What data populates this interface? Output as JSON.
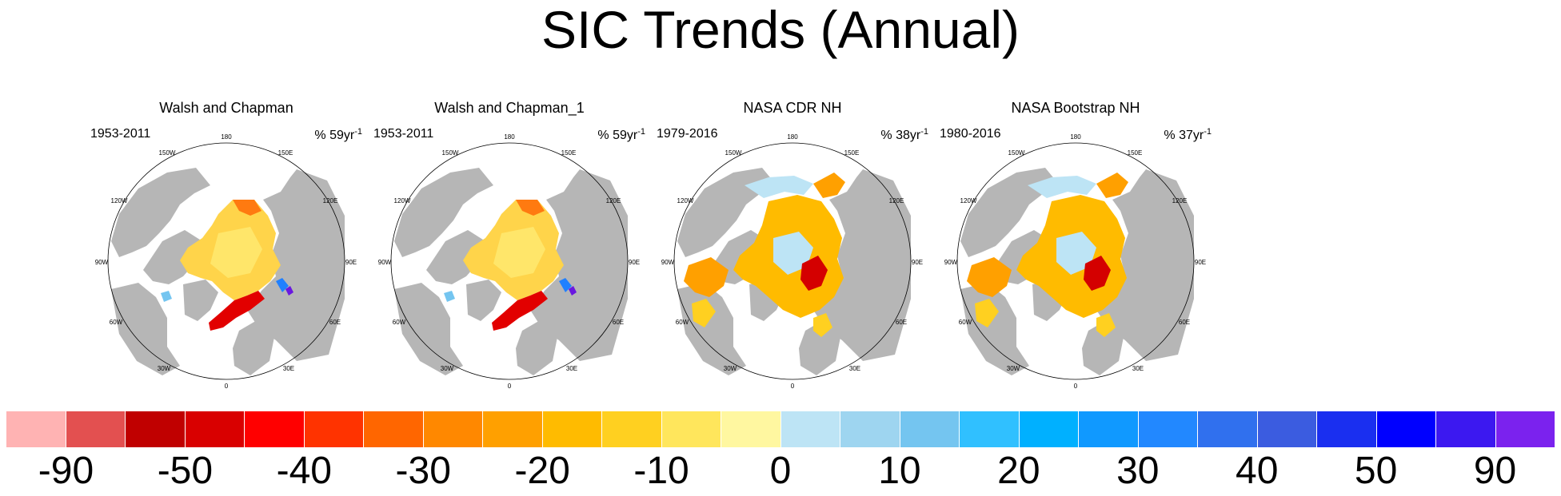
{
  "title": "SIC Trends (Annual)",
  "panels": [
    {
      "title": "Walsh and Chapman",
      "years": "1953-2011",
      "units_prefix": "% 59yr",
      "units_exp": "-1",
      "variant": "wc"
    },
    {
      "title": "Walsh and Chapman_1",
      "years": "1953-2011",
      "units_prefix": "% 59yr",
      "units_exp": "-1",
      "variant": "wc"
    },
    {
      "title": "NASA CDR NH",
      "years": "1979-2016",
      "units_prefix": "% 38yr",
      "units_exp": "-1",
      "variant": "nasa"
    },
    {
      "title": "NASA Bootstrap NH",
      "years": "1980-2016",
      "units_prefix": "% 37yr",
      "units_exp": "-1",
      "variant": "nasa"
    }
  ],
  "map_labels": {
    "top": "180",
    "bottom": "0",
    "upper_left_1": "150W",
    "upper_left_2": "120W",
    "left": "90W",
    "lower_left_1": "60W",
    "lower_left_2": "30W",
    "upper_right_1": "150E",
    "upper_right_2": "120E",
    "right": "90E",
    "lower_right_1": "60E",
    "lower_right_2": "30E"
  },
  "colorbar": {
    "colors": [
      "#ffb3b3",
      "#e35050",
      "#c00000",
      "#d90000",
      "#ff0000",
      "#ff3300",
      "#ff6600",
      "#ff8800",
      "#ffa000",
      "#ffbb00",
      "#ffd020",
      "#ffe65c",
      "#fff7a0",
      "#bde4f5",
      "#9ed5f0",
      "#74c5f0",
      "#30c0ff",
      "#00b0ff",
      "#1099ff",
      "#2288ff",
      "#3070ee",
      "#3b5ce0",
      "#1a2ff0",
      "#0000ff",
      "#3c18f0",
      "#7b22ee"
    ],
    "labels": [
      "-90",
      "-50",
      "-40",
      "-30",
      "-20",
      "-10",
      "0",
      "10",
      "20",
      "30",
      "40",
      "50",
      "90"
    ]
  }
}
